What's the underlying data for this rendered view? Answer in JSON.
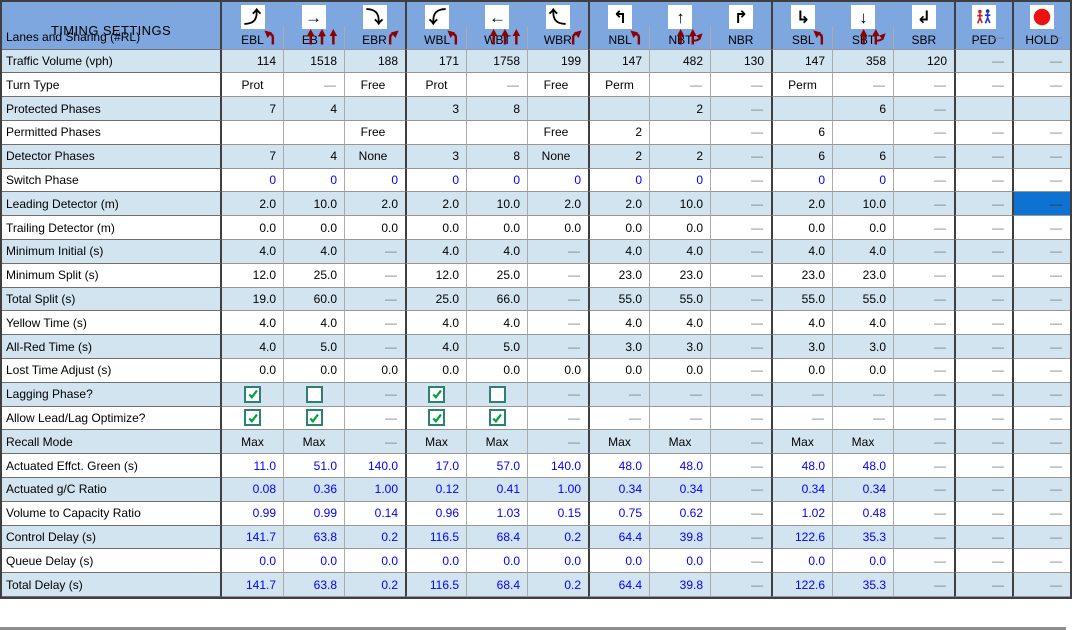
{
  "title": "TIMING SETTINGS",
  "colors": {
    "header_blue": "#7EA7E0",
    "row_stripe_blue": "#D2E4F0",
    "selected_cell_blue": "#0D72D2",
    "computed_value_blue": "#0000FF",
    "lane_arrow_red": "#8B0000",
    "hold_red": "#EE1111",
    "dash_gray": "#808080"
  },
  "columns": [
    {
      "id": "EBL",
      "label": "EBL",
      "icon": "turn-right-then-up"
    },
    {
      "id": "EBT",
      "label": "EBT",
      "icon": "straight-right"
    },
    {
      "id": "EBR",
      "label": "EBR",
      "icon": "turn-right-then-down"
    },
    {
      "id": "WBL",
      "label": "WBL",
      "icon": "turn-left-then-down"
    },
    {
      "id": "WBT",
      "label": "WBT",
      "icon": "straight-left"
    },
    {
      "id": "WBR",
      "label": "WBR",
      "icon": "turn-left-then-up"
    },
    {
      "id": "NBL",
      "label": "NBL",
      "icon": "turn-up-then-left"
    },
    {
      "id": "NBT",
      "label": "NBT",
      "icon": "straight-up"
    },
    {
      "id": "NBR",
      "label": "NBR",
      "icon": "turn-up-then-right"
    },
    {
      "id": "SBL",
      "label": "SBL",
      "icon": "turn-down-then-right"
    },
    {
      "id": "SBT",
      "label": "SBT",
      "icon": "straight-down"
    },
    {
      "id": "SBR",
      "label": "SBR",
      "icon": "turn-down-then-left"
    },
    {
      "id": "PED",
      "label": "PED",
      "icon": "pedestrians"
    },
    {
      "id": "HOLD",
      "label": "HOLD",
      "icon": "hold-circle"
    }
  ],
  "selection": {
    "row_label": "Leading Detector (m)",
    "column": "HOLD"
  },
  "rows": [
    {
      "label": "Lanes and Sharing (#RL)",
      "value_style": "black",
      "values": [
        "icon:lane-left",
        "icon:lane-through3",
        "icon:lane-right",
        "icon:lane-left",
        "icon:lane-through3",
        "icon:lane-right",
        "icon:lane-left",
        "icon:lane-through-right",
        "",
        "icon:lane-left",
        "icon:lane-through-right",
        "",
        "—",
        "—"
      ]
    },
    {
      "label": "Traffic Volume (vph)",
      "value_style": "black",
      "values": [
        "114",
        "1518",
        "188",
        "171",
        "1758",
        "199",
        "147",
        "482",
        "130",
        "147",
        "358",
        "120",
        "—",
        "—"
      ]
    },
    {
      "label": "Turn Type",
      "value_style": "black",
      "values": [
        "Prot",
        "—",
        "Free",
        "Prot",
        "—",
        "Free",
        "Perm",
        "—",
        "—",
        "Perm",
        "—",
        "—",
        "—",
        "—"
      ]
    },
    {
      "label": "Protected Phases",
      "value_style": "black",
      "values": [
        "7",
        "4",
        "",
        "3",
        "8",
        "",
        "",
        "2",
        "—",
        "",
        "6",
        "—",
        "",
        ""
      ]
    },
    {
      "label": "Permitted Phases",
      "value_style": "black",
      "values": [
        "",
        "",
        "Free",
        "",
        "",
        "Free",
        "2",
        "",
        "—",
        "6",
        "",
        "—",
        "—",
        "—"
      ]
    },
    {
      "label": "Detector Phases",
      "value_style": "black",
      "values": [
        "7",
        "4",
        "None",
        "3",
        "8",
        "None",
        "2",
        "2",
        "—",
        "6",
        "6",
        "—",
        "—",
        "—"
      ]
    },
    {
      "label": "Switch Phase",
      "value_style": "blue",
      "values": [
        "0",
        "0",
        "0",
        "0",
        "0",
        "0",
        "0",
        "0",
        "—",
        "0",
        "0",
        "—",
        "—",
        "—"
      ]
    },
    {
      "label": "Leading Detector (m)",
      "value_style": "black",
      "values": [
        "2.0",
        "10.0",
        "2.0",
        "2.0",
        "10.0",
        "2.0",
        "2.0",
        "10.0",
        "—",
        "2.0",
        "10.0",
        "—",
        "—",
        "—"
      ]
    },
    {
      "label": "Trailing Detector (m)",
      "value_style": "black",
      "values": [
        "0.0",
        "0.0",
        "0.0",
        "0.0",
        "0.0",
        "0.0",
        "0.0",
        "0.0",
        "—",
        "0.0",
        "0.0",
        "—",
        "—",
        "—"
      ]
    },
    {
      "label": "Minimum Initial (s)",
      "value_style": "black",
      "values": [
        "4.0",
        "4.0",
        "—",
        "4.0",
        "4.0",
        "—",
        "4.0",
        "4.0",
        "—",
        "4.0",
        "4.0",
        "—",
        "—",
        "—"
      ]
    },
    {
      "label": "Minimum Split (s)",
      "value_style": "black",
      "values": [
        "12.0",
        "25.0",
        "—",
        "12.0",
        "25.0",
        "—",
        "23.0",
        "23.0",
        "—",
        "23.0",
        "23.0",
        "—",
        "—",
        "—"
      ]
    },
    {
      "label": "Total Split (s)",
      "value_style": "black",
      "values": [
        "19.0",
        "60.0",
        "—",
        "25.0",
        "66.0",
        "—",
        "55.0",
        "55.0",
        "—",
        "55.0",
        "55.0",
        "—",
        "—",
        "—"
      ]
    },
    {
      "label": "Yellow Time (s)",
      "value_style": "black",
      "values": [
        "4.0",
        "4.0",
        "—",
        "4.0",
        "4.0",
        "—",
        "4.0",
        "4.0",
        "—",
        "4.0",
        "4.0",
        "—",
        "—",
        "—"
      ]
    },
    {
      "label": "All-Red Time (s)",
      "value_style": "black",
      "values": [
        "4.0",
        "5.0",
        "—",
        "4.0",
        "5.0",
        "—",
        "3.0",
        "3.0",
        "—",
        "3.0",
        "3.0",
        "—",
        "—",
        "—"
      ]
    },
    {
      "label": "Lost Time Adjust (s)",
      "value_style": "black",
      "values": [
        "0.0",
        "0.0",
        "0.0",
        "0.0",
        "0.0",
        "0.0",
        "0.0",
        "0.0",
        "—",
        "0.0",
        "0.0",
        "—",
        "—",
        "—"
      ]
    },
    {
      "label": "Lagging Phase?",
      "value_style": "black",
      "values": [
        "check:on",
        "check:off",
        "—",
        "check:on",
        "check:off",
        "—",
        "—",
        "—",
        "—",
        "—",
        "—",
        "—",
        "—",
        "—"
      ]
    },
    {
      "label": "Allow Lead/Lag Optimize?",
      "value_style": "black",
      "values": [
        "check:on",
        "check:on",
        "—",
        "check:on",
        "check:on",
        "—",
        "—",
        "—",
        "—",
        "—",
        "—",
        "—",
        "—",
        "—"
      ]
    },
    {
      "label": "Recall Mode",
      "value_style": "black",
      "values": [
        "Max",
        "Max",
        "—",
        "Max",
        "Max",
        "—",
        "Max",
        "Max",
        "—",
        "Max",
        "Max",
        "—",
        "—",
        "—"
      ]
    },
    {
      "label": "Actuated Effct. Green (s)",
      "value_style": "blue",
      "values": [
        "11.0",
        "51.0",
        "140.0",
        "17.0",
        "57.0",
        "140.0",
        "48.0",
        "48.0",
        "—",
        "48.0",
        "48.0",
        "—",
        "—",
        "—"
      ]
    },
    {
      "label": "Actuated g/C Ratio",
      "value_style": "blue",
      "values": [
        "0.08",
        "0.36",
        "1.00",
        "0.12",
        "0.41",
        "1.00",
        "0.34",
        "0.34",
        "—",
        "0.34",
        "0.34",
        "—",
        "—",
        "—"
      ]
    },
    {
      "label": "Volume to Capacity Ratio",
      "value_style": "blue",
      "values": [
        "0.99",
        "0.99",
        "0.14",
        "0.96",
        "1.03",
        "0.15",
        "0.75",
        "0.62",
        "—",
        "1.02",
        "0.48",
        "—",
        "—",
        "—"
      ]
    },
    {
      "label": "Control Delay (s)",
      "value_style": "blue",
      "values": [
        "141.7",
        "63.8",
        "0.2",
        "116.5",
        "68.4",
        "0.2",
        "64.4",
        "39.8",
        "—",
        "122.6",
        "35.3",
        "—",
        "—",
        "—"
      ]
    },
    {
      "label": "Queue Delay (s)",
      "value_style": "blue",
      "values": [
        "0.0",
        "0.0",
        "0.0",
        "0.0",
        "0.0",
        "0.0",
        "0.0",
        "0.0",
        "—",
        "0.0",
        "0.0",
        "—",
        "—",
        "—"
      ]
    },
    {
      "label": "Total Delay (s)",
      "value_style": "blue",
      "values": [
        "141.7",
        "63.8",
        "0.2",
        "116.5",
        "68.4",
        "0.2",
        "64.4",
        "39.8",
        "—",
        "122.6",
        "35.3",
        "—",
        "—",
        "—"
      ]
    }
  ]
}
